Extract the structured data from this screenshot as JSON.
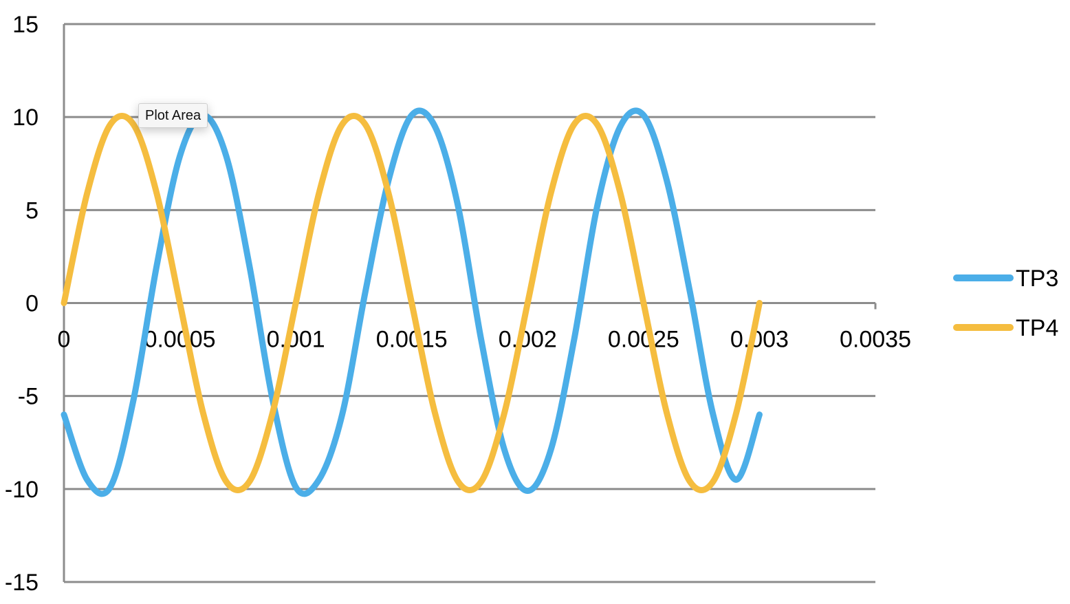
{
  "tooltip": {
    "text": "Plot Area"
  },
  "chart_data": {
    "type": "line",
    "title": "",
    "xlabel": "",
    "ylabel": "",
    "xlim": [
      0,
      0.0035
    ],
    "ylim": [
      -15,
      15
    ],
    "x_ticks": [
      "0",
      "0.0005",
      "0.001",
      "0.0015",
      "0.002",
      "0.0025",
      "0.003",
      "0.0035"
    ],
    "y_ticks": [
      "15",
      "10",
      "5",
      "0",
      "-5",
      "-10",
      "-15"
    ],
    "grid": true,
    "legend_position": "right",
    "x": [
      0,
      0.0001,
      0.0002,
      0.0003,
      0.0004,
      0.0005,
      0.0006,
      0.0007,
      0.0008,
      0.0009,
      0.001,
      0.0011,
      0.0012,
      0.0013,
      0.0014,
      0.0015,
      0.0016,
      0.0017,
      0.0018,
      0.0019,
      0.002,
      0.0021,
      0.0022,
      0.0023,
      0.0024,
      0.0025,
      0.0026,
      0.0027,
      0.0028,
      0.0029,
      0.003
    ],
    "series": [
      {
        "name": "TP3",
        "color": "#4baee8",
        "values": [
          -6.0,
          -9.5,
          -9.9,
          -5.2,
          2.0,
          7.9,
          10.1,
          7.9,
          2.0,
          -5.2,
          -9.9,
          -9.5,
          -6.0,
          0.6,
          6.6,
          10.1,
          9.5,
          5.2,
          -2.0,
          -7.9,
          -10.1,
          -7.9,
          -2.0,
          5.2,
          9.5,
          10.1,
          6.6,
          0.6,
          -6.0,
          -9.5,
          -6.0
        ]
      },
      {
        "name": "TP4",
        "color": "#f5bd3f",
        "values": [
          0.0,
          5.9,
          9.6,
          9.6,
          5.9,
          0.0,
          -5.9,
          -9.6,
          -9.6,
          -5.9,
          0.0,
          5.9,
          9.6,
          9.6,
          5.9,
          0.0,
          -5.9,
          -9.6,
          -9.6,
          -5.9,
          0.0,
          5.9,
          9.6,
          9.6,
          5.9,
          0.0,
          -5.9,
          -9.6,
          -9.6,
          -5.9,
          0.0
        ]
      }
    ]
  }
}
